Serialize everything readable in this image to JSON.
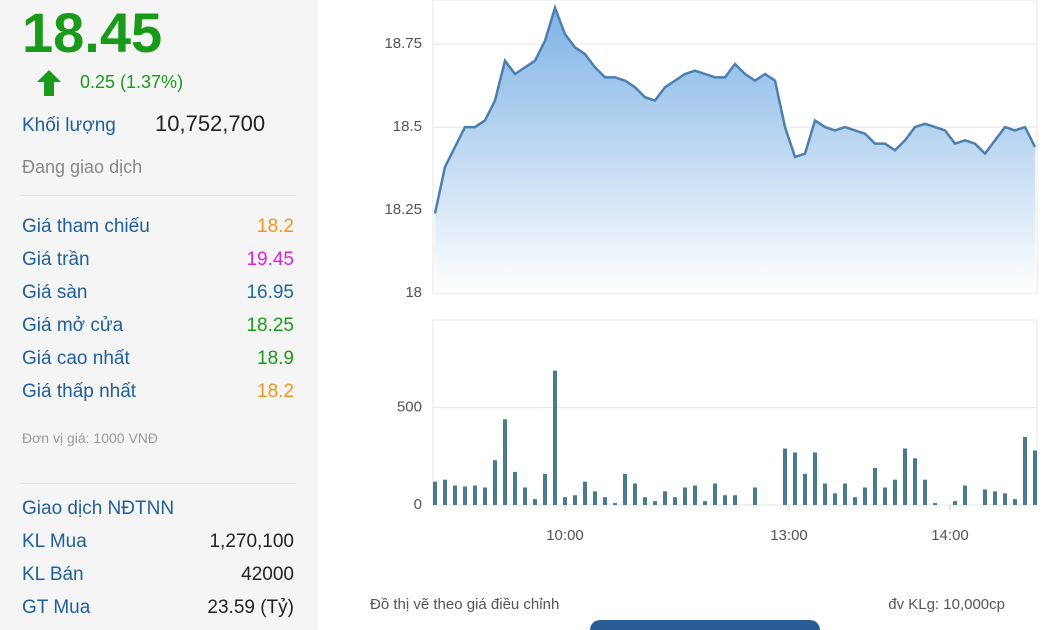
{
  "panel": {
    "price": "18.45",
    "change": "0.25 (1.37%)",
    "volume_label": "Khối lượng",
    "volume": "10,752,700",
    "status": "Đang giao dịch",
    "rows": [
      [
        "Giá tham chiếu",
        "18.2"
      ],
      [
        "Giá trần",
        "19.45"
      ],
      [
        "Giá sàn",
        "16.95"
      ],
      [
        "Giá mở cửa",
        "18.25"
      ],
      [
        "Giá cao nhất",
        "18.9"
      ],
      [
        "Giá thấp nhất",
        "18.2"
      ]
    ],
    "unit": "Đơn vị giá: 1000 VNĐ",
    "foreign_title": "Giao dịch NĐTNN",
    "foreign_rows": [
      [
        "KL Mua",
        "1,270,100"
      ],
      [
        "KL Bán",
        "42000"
      ],
      [
        "GT Mua",
        "23.59 (Tỷ)"
      ]
    ]
  },
  "chart_data": [
    {
      "type": "area",
      "color": "#4a7fb0",
      "ylim": [
        18,
        18.88
      ],
      "yticks": [
        18,
        18.25,
        18.5,
        18.75
      ],
      "xlim": [
        0,
        60
      ],
      "grid": true,
      "values": [
        18.24,
        18.38,
        18.44,
        18.5,
        18.5,
        18.52,
        18.58,
        18.7,
        18.66,
        18.68,
        18.7,
        18.76,
        18.86,
        18.78,
        18.74,
        18.72,
        18.68,
        18.65,
        18.65,
        18.64,
        18.62,
        18.59,
        18.58,
        18.62,
        18.64,
        18.66,
        18.67,
        18.66,
        18.65,
        18.65,
        18.69,
        18.66,
        18.64,
        18.66,
        18.64,
        18.5,
        18.41,
        18.42,
        18.52,
        18.5,
        18.49,
        18.5,
        18.49,
        18.48,
        18.45,
        18.45,
        18.43,
        18.46,
        18.5,
        18.51,
        18.5,
        18.49,
        18.45,
        18.46,
        18.45,
        18.42,
        18.46,
        18.5,
        18.49,
        18.5,
        18.44
      ]
    },
    {
      "type": "bar",
      "color": "#4a7a90",
      "ylim": [
        0,
        950
      ],
      "yticks": [
        0,
        500
      ],
      "xlim": [
        0,
        60
      ],
      "grid": true,
      "xticks": [
        {
          "value": 13,
          "label": "10:00"
        },
        {
          "value": 35.4,
          "label": "13:00"
        },
        {
          "value": 51.5,
          "label": "14:00"
        }
      ],
      "values": [
        120,
        130,
        100,
        95,
        100,
        90,
        230,
        440,
        170,
        90,
        30,
        160,
        690,
        40,
        50,
        120,
        70,
        40,
        10,
        160,
        110,
        40,
        20,
        70,
        40,
        90,
        100,
        20,
        110,
        50,
        50,
        0,
        90,
        0,
        0,
        290,
        270,
        160,
        270,
        110,
        60,
        110,
        40,
        90,
        190,
        90,
        130,
        290,
        240,
        130,
        10,
        0,
        20,
        100,
        0,
        80,
        70,
        60,
        30,
        350,
        280
      ]
    }
  ],
  "notes": {
    "adjusted": "Đồ thị vẽ theo giá điều chỉnh",
    "unit": "đv KLg: 10,000cp"
  }
}
